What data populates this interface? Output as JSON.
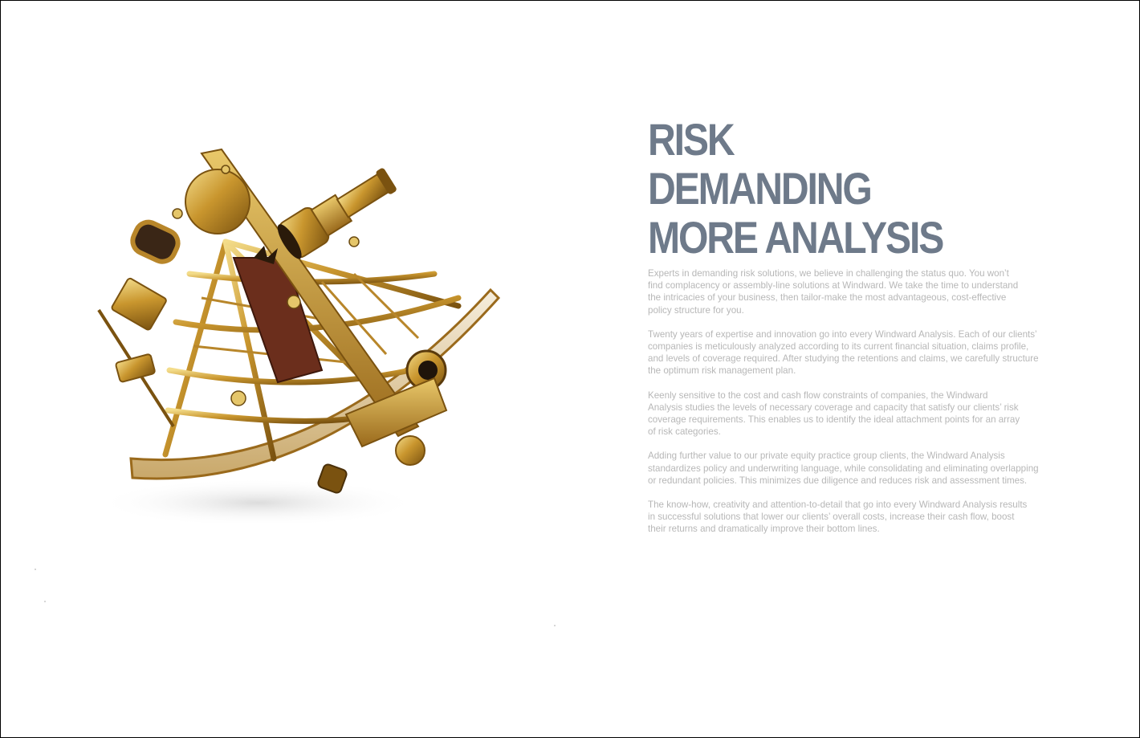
{
  "headline": {
    "lines": [
      "RISK",
      "DEMANDING",
      "MORE ANALYSIS"
    ]
  },
  "paragraphs": [
    {
      "lines": [
        "Experts in demanding risk solutions, we believe in challenging the status quo. You won’t",
        "find complacency or assembly-line solutions at Windward. We take the time to understand",
        "the intricacies of your business, then tailor-make the most advantageous, cost-effective",
        "policy structure for you."
      ]
    },
    {
      "lines": [
        "Twenty years of expertise and innovation go into every Windward Analysis. Each of our clients’",
        "companies is meticulously analyzed according to its current financial situation, claims profile,",
        "and levels of coverage required. After studying the retentions and claims, we carefully structure",
        "the optimum risk management plan."
      ]
    },
    {
      "lines": [
        "Keenly sensitive to the cost and cash flow constraints of companies, the Windward",
        "Analysis studies the levels of necessary coverage and capacity that satisfy our clients’ risk",
        "coverage requirements. This enables us to identify the ideal attachment points for an array",
        "of risk categories."
      ]
    },
    {
      "lines": [
        "Adding further value to our private equity practice group clients, the Windward Analysis",
        "standardizes policy and underwriting language, while consolidating and eliminating overlapping",
        "or redundant policies. This minimizes due diligence and reduces risk and assessment times."
      ]
    },
    {
      "lines": [
        "The know-how, creativity and attention-to-detail that go into every Windward Analysis results",
        "in successful solutions that lower our clients’ overall costs, increase their cash flow, boost",
        "their returns and dramatically improve their bottom lines."
      ]
    }
  ],
  "colors": {
    "headline": "#6e7a8a",
    "body_text": "#b7b7b7",
    "brass": "#c9962e",
    "wood": "#6b2e1c"
  },
  "image": {
    "subject": "brass-sextant"
  }
}
